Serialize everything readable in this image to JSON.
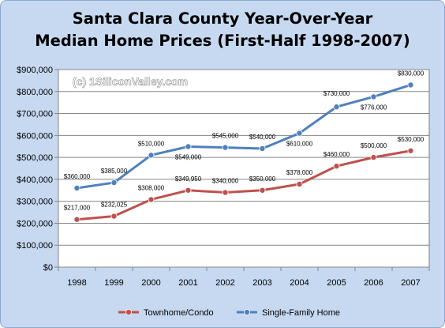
{
  "chart_data": {
    "type": "line",
    "title_lines": [
      "Santa Clara County Year-Over-Year",
      "Median Home Prices (First-Half 1998-2007)"
    ],
    "watermark": "(c) 1SiliconValley.com",
    "categories": [
      "1998",
      "1999",
      "2000",
      "2001",
      "2002",
      "2003",
      "2004",
      "2005",
      "2006",
      "2007"
    ],
    "ylim": [
      0,
      900000
    ],
    "y_ticks": [
      "$0",
      "$100,000",
      "$200,000",
      "$300,000",
      "$400,000",
      "$500,000",
      "$600,000",
      "$700,000",
      "$800,000",
      "$900,000"
    ],
    "grid": true,
    "legend_position": "bottom",
    "series": [
      {
        "name": "Townhome/Condo",
        "color": "#c0504d",
        "values": [
          217000,
          232025,
          308000,
          349950,
          340000,
          350000,
          378000,
          460000,
          500000,
          530000
        ],
        "labels": [
          "$217,000",
          "$232,025",
          "$308,000",
          "$349,950",
          "$340,000",
          "$350,000",
          "$378,000",
          "$460,000",
          "$500,000",
          "$530,000"
        ]
      },
      {
        "name": "Single-Family Home",
        "color": "#4f81bd",
        "values": [
          360000,
          385000,
          510000,
          549000,
          545000,
          540000,
          610000,
          730000,
          776000,
          830000
        ],
        "labels": [
          "$360,000",
          "$385,000",
          "$510,000",
          "$549,000",
          "$545,000",
          "$540,000",
          "$610,000",
          "$730,000",
          "$776,000",
          "$830,000"
        ]
      }
    ]
  }
}
